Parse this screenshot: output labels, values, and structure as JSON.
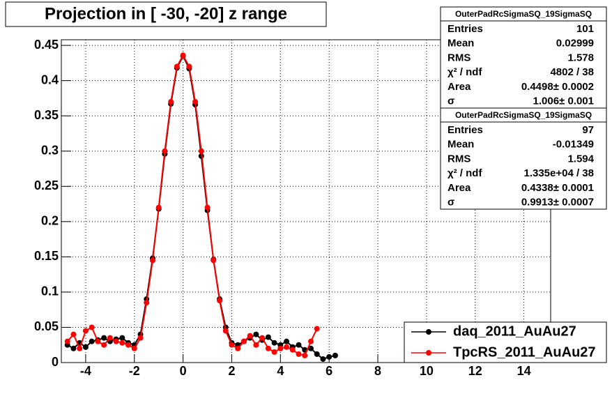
{
  "chart_data": {
    "type": "scatter",
    "title": "Projection in [ -30, -20] z range",
    "xlim": [
      -5,
      15.1
    ],
    "ylim": [
      0,
      0.458
    ],
    "xticks": [
      -4,
      -2,
      0,
      2,
      4,
      6,
      8,
      10,
      12,
      14
    ],
    "yticks": [
      0,
      0.05,
      0.1,
      0.15,
      0.2,
      0.25,
      0.3,
      0.35,
      0.4,
      0.45
    ],
    "grid": true,
    "legend": "bottom-right",
    "series": [
      {
        "name": "daq_2011_AuAu27",
        "color": "#000000",
        "x": [
          -4.75,
          -4.5,
          -4.25,
          -4,
          -3.75,
          -3.5,
          -3.25,
          -3,
          -2.75,
          -2.5,
          -2.25,
          -2,
          -1.75,
          -1.5,
          -1.25,
          -1,
          -0.75,
          -0.5,
          -0.25,
          0,
          0.25,
          0.5,
          0.75,
          1,
          1.25,
          1.5,
          1.75,
          2,
          2.25,
          2.5,
          2.75,
          3,
          3.25,
          3.5,
          3.75,
          4,
          4.25,
          4.5,
          4.75,
          5,
          5.25,
          5.5,
          5.75,
          6,
          6.25
        ],
        "values": [
          0.025,
          0.02,
          0.028,
          0.022,
          0.03,
          0.032,
          0.035,
          0.03,
          0.033,
          0.035,
          0.028,
          0.025,
          0.04,
          0.09,
          0.148,
          0.218,
          0.296,
          0.367,
          0.418,
          0.435,
          0.417,
          0.366,
          0.293,
          0.216,
          0.146,
          0.09,
          0.05,
          0.028,
          0.025,
          0.03,
          0.035,
          0.04,
          0.032,
          0.036,
          0.028,
          0.025,
          0.03,
          0.022,
          0.025,
          0.018,
          0.02,
          0.012,
          0.005,
          0.008,
          0.01
        ]
      },
      {
        "name": "TpcRS_2011_AuAu27",
        "color": "#ff0000",
        "x": [
          -4.75,
          -4.5,
          -4.25,
          -4,
          -3.75,
          -3.5,
          -3.25,
          -3,
          -2.75,
          -2.5,
          -2.25,
          -2,
          -1.75,
          -1.5,
          -1.25,
          -1,
          -0.75,
          -0.5,
          -0.25,
          0,
          0.25,
          0.5,
          0.75,
          1,
          1.25,
          1.5,
          1.75,
          2,
          2.25,
          2.5,
          2.75,
          3,
          3.25,
          3.5,
          3.75,
          4,
          4.25,
          4.5,
          4.75,
          5,
          5.25,
          5.5
        ],
        "values": [
          0.03,
          0.04,
          0.02,
          0.045,
          0.05,
          0.03,
          0.025,
          0.035,
          0.03,
          0.028,
          0.025,
          0.02,
          0.035,
          0.085,
          0.145,
          0.22,
          0.3,
          0.37,
          0.42,
          0.436,
          0.42,
          0.37,
          0.3,
          0.22,
          0.145,
          0.088,
          0.045,
          0.025,
          0.02,
          0.03,
          0.038,
          0.025,
          0.035,
          0.02,
          0.015,
          0.02,
          0.022,
          0.018,
          0.012,
          0.01,
          0.03,
          0.048
        ]
      }
    ],
    "stats": [
      {
        "title": "OuterPadRcSigmaSQ_19SigmaSQ",
        "rows": [
          [
            "Entries",
            "101"
          ],
          [
            "Mean",
            "0.02999"
          ],
          [
            "RMS",
            "1.578"
          ],
          [
            "χ² / ndf",
            "4802 / 38"
          ],
          [
            "Area",
            "0.4498± 0.0002"
          ],
          [
            "σ",
            "1.006± 0.001"
          ]
        ]
      },
      {
        "title": "OuterPadRcSigmaSQ_19SigmaSQ",
        "rows": [
          [
            "Entries",
            "97"
          ],
          [
            "Mean",
            "-0.01349"
          ],
          [
            "RMS",
            "1.594"
          ],
          [
            "χ² / ndf",
            "1.335e+04 / 38"
          ],
          [
            "Area",
            "0.4338± 0.0001"
          ],
          [
            "σ",
            "0.9913± 0.0007"
          ]
        ]
      }
    ]
  }
}
